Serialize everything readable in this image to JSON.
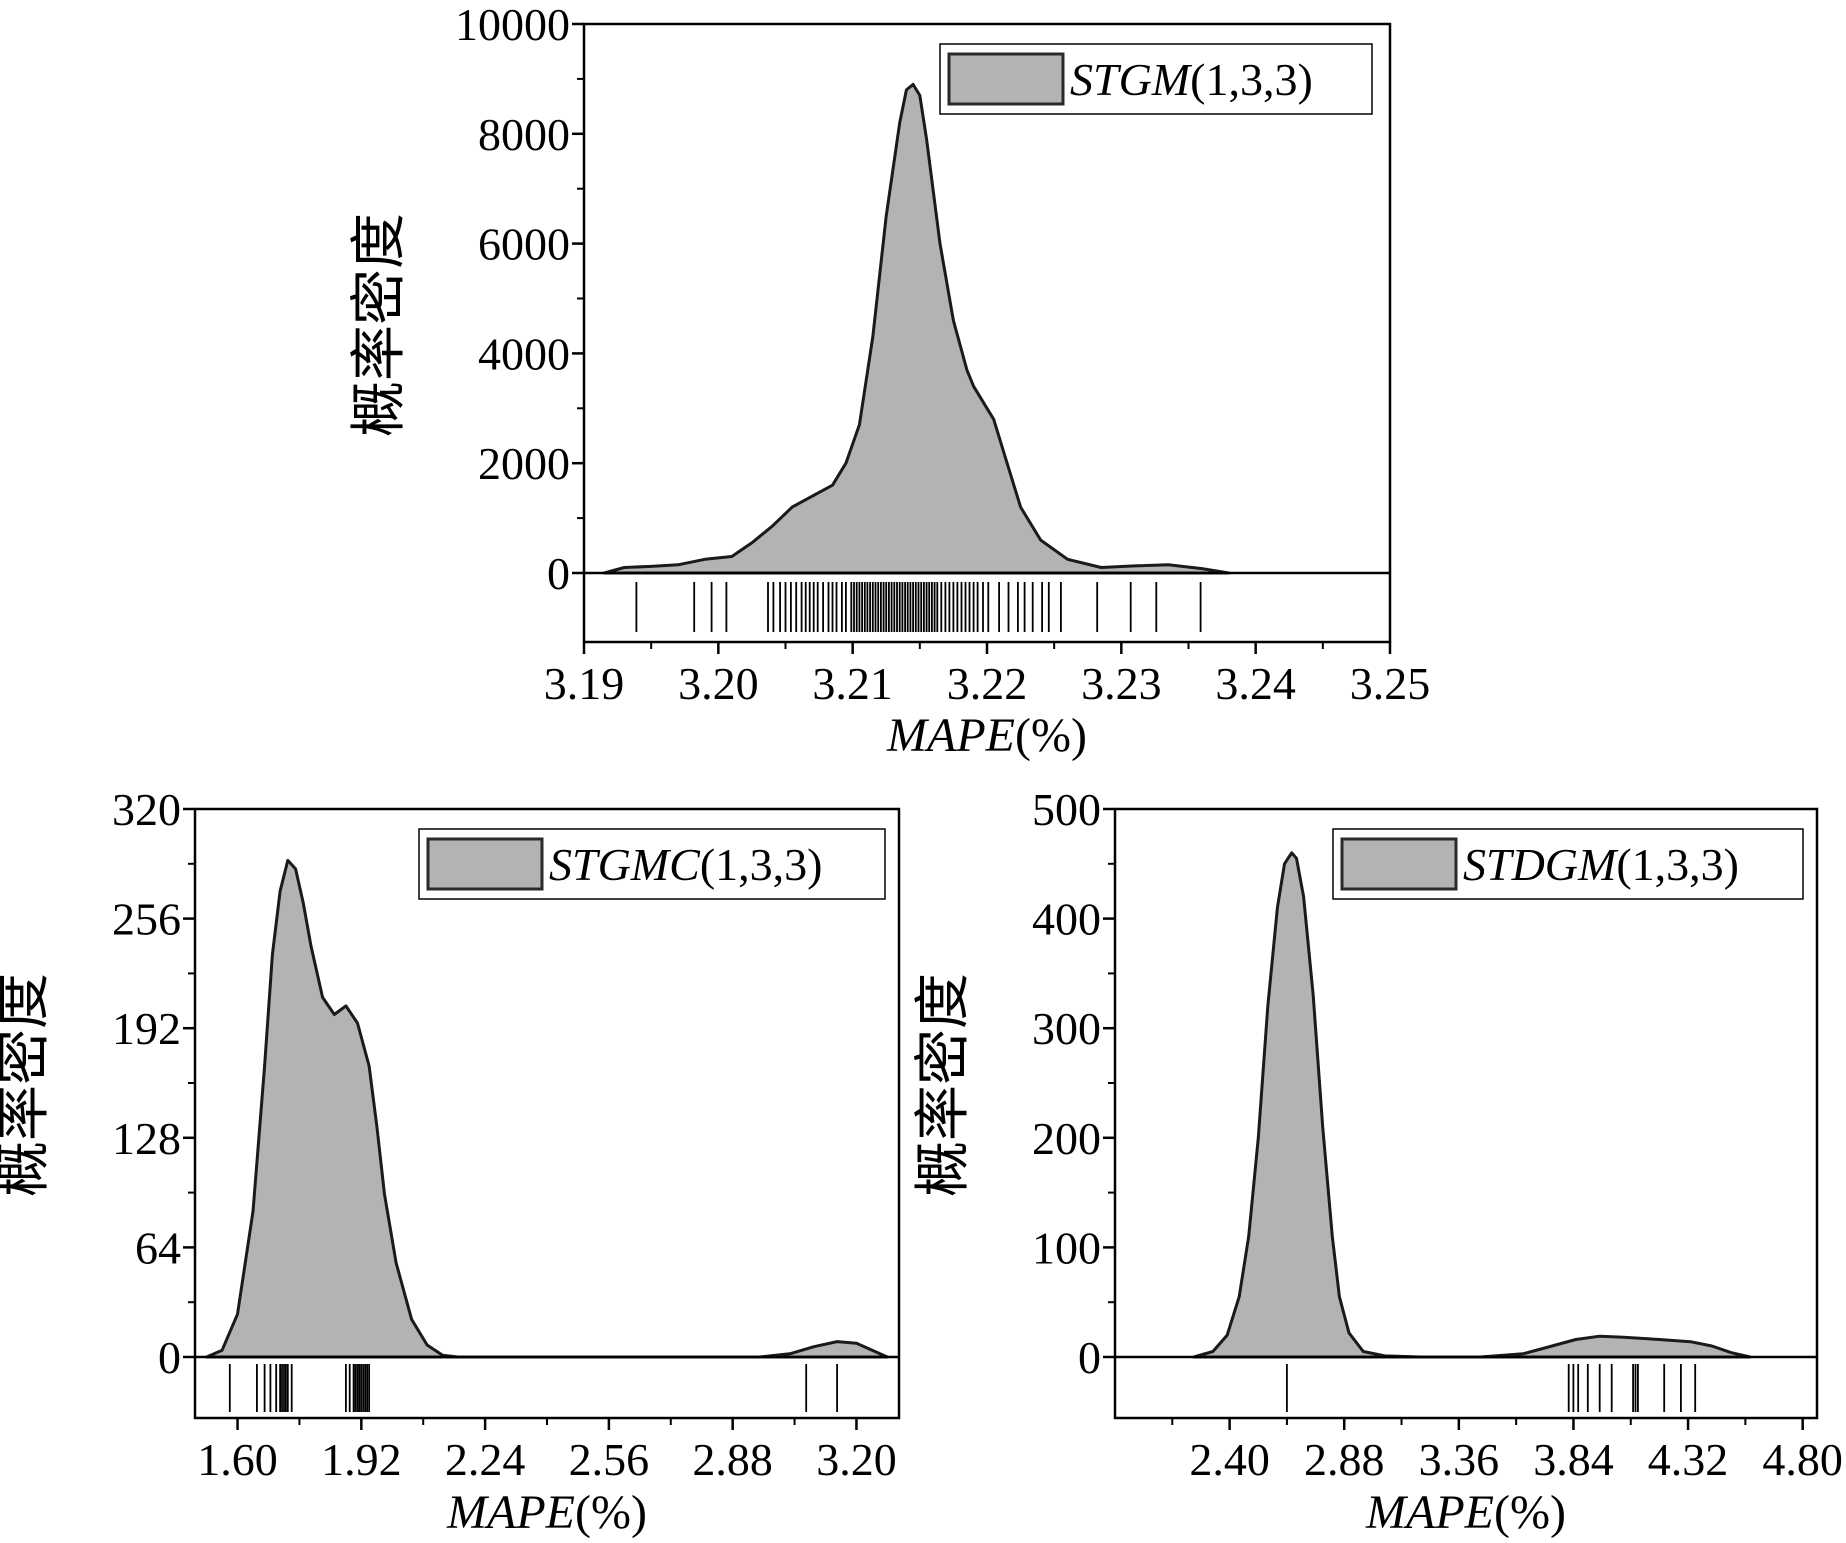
{
  "colors": {
    "fill": "#b3b3b3",
    "stroke": "#1a1a1a",
    "axis": "#000000",
    "background": "#ffffff"
  },
  "chart_data": [
    {
      "id": "stgm",
      "type": "area",
      "series_name": "STGM",
      "series_suffix": "(1,3,3)",
      "ylabel": "概率密度",
      "xlabel_main": "MAPE",
      "xlabel_unit": "(%)",
      "xlim": [
        3.19,
        3.25
      ],
      "ylim": [
        -1250,
        10000
      ],
      "xticks": [
        3.19,
        3.2,
        3.21,
        3.22,
        3.23,
        3.24,
        3.25
      ],
      "xtick_labels": [
        "3.19",
        "3.20",
        "3.21",
        "3.22",
        "3.23",
        "3.24",
        "3.25"
      ],
      "yticks": [
        0,
        2000,
        4000,
        6000,
        8000,
        10000
      ],
      "ytick_labels": [
        "0",
        "2000",
        "4000",
        "6000",
        "8000",
        "10000"
      ],
      "legend_position": "top-right",
      "grid": false,
      "x": [
        3.1915,
        3.193,
        3.195,
        3.197,
        3.199,
        3.201,
        3.2025,
        3.204,
        3.2055,
        3.207,
        3.2085,
        3.2095,
        3.2105,
        3.2115,
        3.2125,
        3.2135,
        3.214,
        3.2145,
        3.215,
        3.2155,
        3.2165,
        3.2175,
        3.2185,
        3.219,
        3.2205,
        3.2215,
        3.2225,
        3.224,
        3.226,
        3.2285,
        3.231,
        3.2335,
        3.236,
        3.238
      ],
      "y": [
        0,
        100,
        120,
        150,
        250,
        300,
        550,
        850,
        1200,
        1400,
        1600,
        2000,
        2700,
        4300,
        6500,
        8200,
        8800,
        8900,
        8700,
        7900,
        6000,
        4600,
        3700,
        3400,
        2800,
        2000,
        1200,
        600,
        250,
        100,
        130,
        150,
        80,
        0
      ],
      "rug": [
        3.1939,
        3.1982,
        3.1995,
        3.2006,
        3.2037,
        3.2041,
        3.2046,
        3.205,
        3.2054,
        3.2058,
        3.2062,
        3.2065,
        3.2068,
        3.2071,
        3.2074,
        3.2078,
        3.2082,
        3.2085,
        3.2088,
        3.2092,
        3.2095,
        3.2099,
        3.2101,
        3.2103,
        3.2105,
        3.2107,
        3.2109,
        3.2111,
        3.2113,
        3.2115,
        3.2117,
        3.2119,
        3.2121,
        3.2123,
        3.2125,
        3.2127,
        3.2129,
        3.2131,
        3.2133,
        3.2135,
        3.2137,
        3.2139,
        3.2141,
        3.2143,
        3.2145,
        3.2147,
        3.2149,
        3.2151,
        3.2153,
        3.2155,
        3.2157,
        3.2159,
        3.2161,
        3.2163,
        3.2166,
        3.2169,
        3.2172,
        3.2175,
        3.2178,
        3.2181,
        3.2184,
        3.2187,
        3.219,
        3.2193,
        3.2197,
        3.2201,
        3.2209,
        3.2216,
        3.2223,
        3.2228,
        3.2234,
        3.2241,
        3.2246,
        3.2255,
        3.2282,
        3.2307,
        3.2326,
        3.2359
      ]
    },
    {
      "id": "stgmc",
      "type": "area",
      "series_name": "STGMC",
      "series_suffix": "(1,3,3)",
      "ylabel": "概率密度",
      "xlabel_main": "MAPE",
      "xlabel_unit": "(%)",
      "xlim": [
        1.49,
        3.31
      ],
      "ylim": [
        -40,
        320
      ],
      "xticks": [
        1.6,
        1.92,
        2.24,
        2.56,
        2.88,
        3.2
      ],
      "xtick_labels": [
        "1.60",
        "1.92",
        "2.24",
        "2.56",
        "2.88",
        "3.20"
      ],
      "yticks": [
        0,
        64,
        128,
        192,
        256,
        320
      ],
      "ytick_labels": [
        "0",
        "64",
        "128",
        "192",
        "256",
        "320"
      ],
      "legend_position": "top-right",
      "grid": false,
      "x": [
        1.52,
        1.56,
        1.6,
        1.64,
        1.67,
        1.69,
        1.71,
        1.73,
        1.75,
        1.77,
        1.79,
        1.82,
        1.85,
        1.88,
        1.91,
        1.94,
        1.96,
        1.98,
        2.01,
        2.05,
        2.09,
        2.13,
        2.17,
        2.25,
        2.6,
        2.95,
        3.03,
        3.09,
        3.15,
        3.2,
        3.25,
        3.28
      ],
      "y": [
        0,
        4,
        25,
        85,
        170,
        235,
        272,
        290,
        285,
        265,
        240,
        210,
        200,
        205,
        195,
        170,
        135,
        95,
        55,
        22,
        7,
        1,
        0,
        0,
        0,
        0,
        2,
        6,
        9,
        8,
        3,
        0
      ],
      "rug": [
        1.58,
        1.65,
        1.67,
        1.685,
        1.7,
        1.71,
        1.715,
        1.72,
        1.725,
        1.73,
        1.74,
        1.88,
        1.89,
        1.9,
        1.905,
        1.91,
        1.915,
        1.92,
        1.925,
        1.93,
        1.935,
        1.94,
        3.07,
        3.15
      ]
    },
    {
      "id": "stdgm",
      "type": "area",
      "series_name": "STDGM",
      "series_suffix": "(1,3,3)",
      "ylabel": "概率密度",
      "xlabel_main": "MAPE",
      "xlabel_unit": "(%)",
      "xlim": [
        1.92,
        4.86
      ],
      "ylim": [
        -60,
        500
      ],
      "xticks": [
        2.4,
        2.88,
        3.36,
        3.84,
        4.32,
        4.8
      ],
      "xtick_labels": [
        "2.40",
        "2.88",
        "3.36",
        "3.84",
        "4.32",
        "4.80"
      ],
      "yticks": [
        0,
        100,
        200,
        300,
        400,
        500
      ],
      "ytick_labels": [
        "0",
        "100",
        "200",
        "300",
        "400",
        "500"
      ],
      "legend_position": "top-right",
      "grid": false,
      "x": [
        2.25,
        2.33,
        2.39,
        2.44,
        2.48,
        2.52,
        2.56,
        2.6,
        2.63,
        2.66,
        2.68,
        2.71,
        2.75,
        2.79,
        2.83,
        2.86,
        2.9,
        2.96,
        3.05,
        3.2,
        3.45,
        3.63,
        3.75,
        3.85,
        3.95,
        4.05,
        4.2,
        4.33,
        4.42,
        4.5,
        4.58
      ],
      "y": [
        0,
        5,
        20,
        55,
        110,
        200,
        320,
        410,
        450,
        460,
        455,
        420,
        330,
        210,
        110,
        55,
        22,
        5,
        1,
        0,
        0,
        3,
        10,
        16,
        19,
        18,
        16,
        14,
        10,
        4,
        0
      ],
      "rug": [
        2.64,
        3.82,
        3.84,
        3.86,
        3.9,
        3.95,
        4.0,
        4.09,
        4.1,
        4.11,
        4.22,
        4.29,
        4.35
      ]
    }
  ]
}
